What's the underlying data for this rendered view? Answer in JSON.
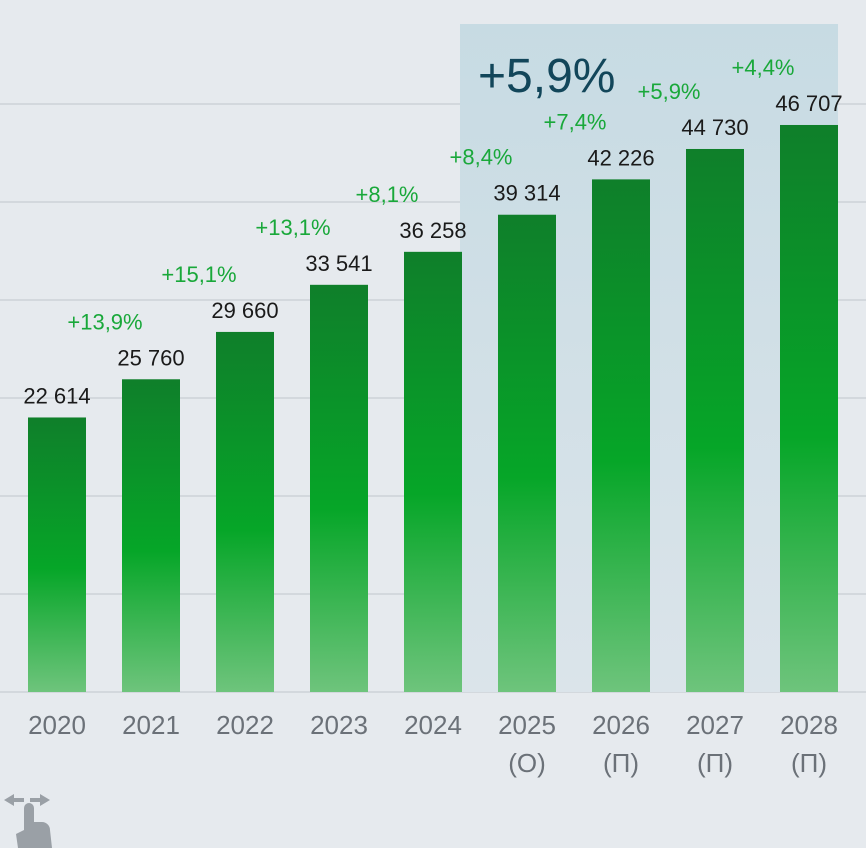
{
  "chart_data": {
    "type": "bar",
    "title": "",
    "xlabel": "",
    "ylabel": "",
    "ylim": [
      0,
      50000
    ],
    "grid": true,
    "categories": [
      {
        "year": "2020",
        "note": ""
      },
      {
        "year": "2021",
        "note": ""
      },
      {
        "year": "2022",
        "note": ""
      },
      {
        "year": "2023",
        "note": ""
      },
      {
        "year": "2024",
        "note": ""
      },
      {
        "year": "2025",
        "note": "(О)"
      },
      {
        "year": "2026",
        "note": "(П)"
      },
      {
        "year": "2027",
        "note": "(П)"
      },
      {
        "year": "2028",
        "note": "(П)"
      }
    ],
    "values": [
      22614,
      25760,
      29660,
      33541,
      36258,
      39314,
      42226,
      44730,
      46707
    ],
    "value_labels": [
      "22 614",
      "25 760",
      "29 660",
      "33 541",
      "36 258",
      "39 314",
      "42 226",
      "44 730",
      "46 707"
    ],
    "growth_labels": [
      "+13,9%",
      "+15,1%",
      "+13,1%",
      "+8,1%",
      "+8,4%",
      "+7,4%",
      "+5,9%",
      "+4,4%"
    ],
    "highlight": {
      "from_category": "2025",
      "to_category": "2028",
      "label": "+5,9%"
    }
  },
  "colors": {
    "background": "#e6eaee",
    "grid": "#d3d8dd",
    "bar_top": "#0f7f2a",
    "bar_mid": "#06a628",
    "bar_bottom": "#6ec47c",
    "growth_text": "#19a83a",
    "value_text": "#1a1a1a",
    "axis_text": "#6b7178",
    "highlight_top": "#c7dbe3",
    "highlight_bottom": "#dbe4ea",
    "highlight_text": "#12465a",
    "hand_icon": "#9aa0a6"
  },
  "icons": {
    "swipe": "swipe-hand-icon"
  }
}
